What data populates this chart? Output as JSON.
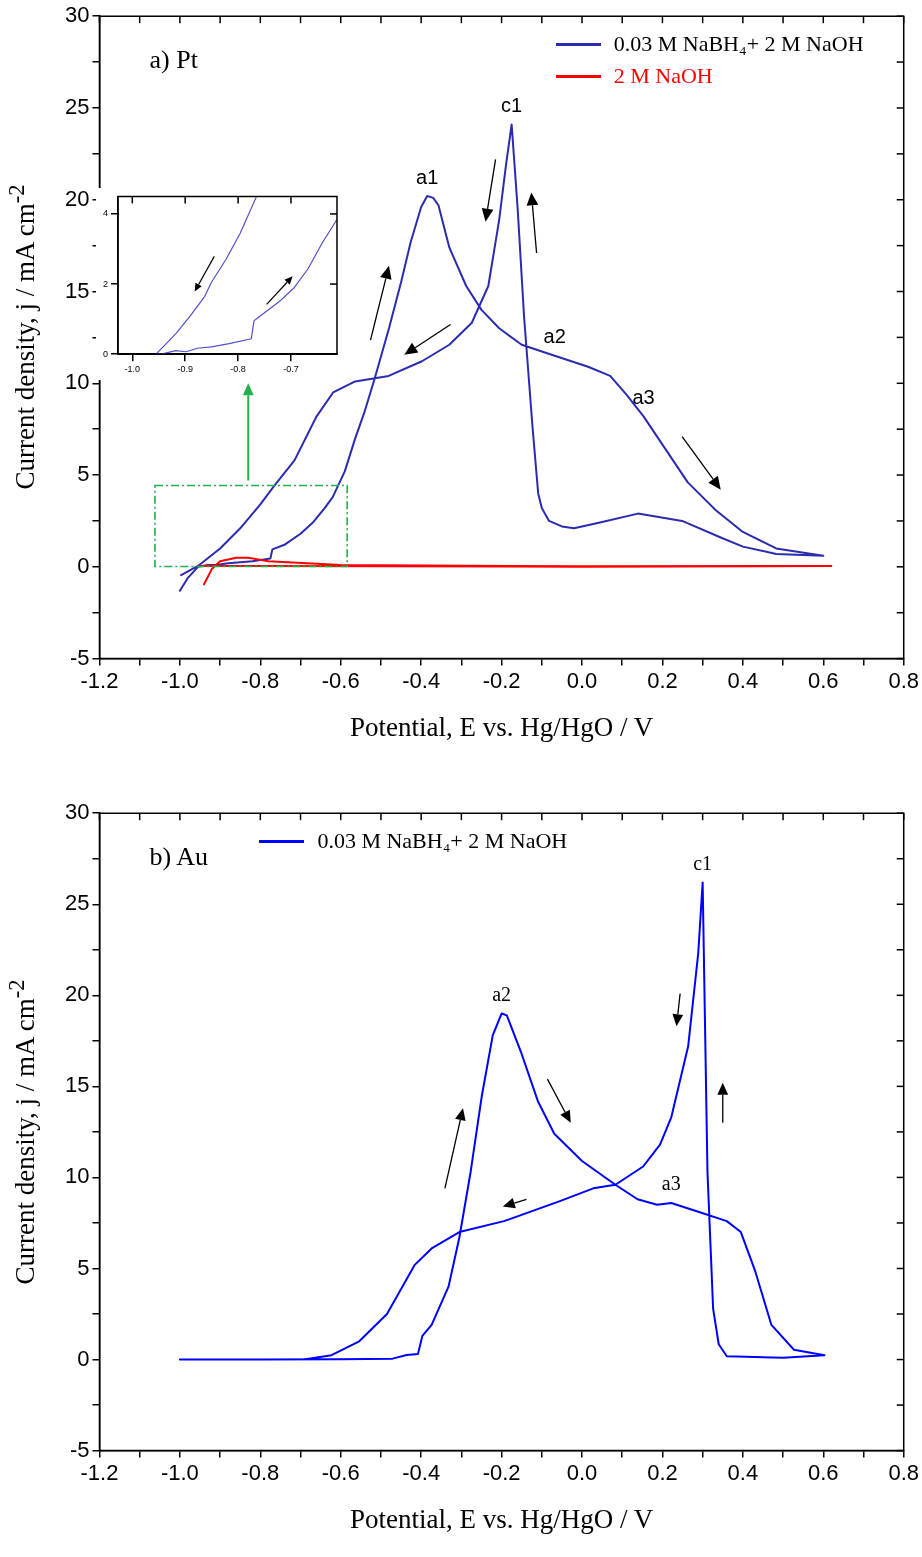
{
  "chart_data": [
    {
      "type": "line",
      "title": "a) Pt",
      "xlabel": "Potential, E vs. Hg/HgO / V",
      "ylabel": "Current density, j / mA cm$^{-2}$",
      "legend": "top right",
      "xlim": [
        -1.2,
        0.8
      ],
      "xticks": [
        -1.2,
        {
          "value": -1.1,
          "label": null
        },
        {
          "value": -1.0,
          "label": "-1.0"
        },
        {
          "value": -0.9,
          "label": null
        },
        -0.8,
        {
          "value": -0.7,
          "label": null
        },
        -0.6,
        {
          "value": -0.5,
          "label": null
        },
        -0.4,
        {
          "value": -0.3,
          "label": null
        },
        -0.2,
        {
          "value": -0.1,
          "label": null
        },
        {
          "value": 0,
          "label": "0.0"
        },
        {
          "value": 0.1,
          "label": null
        },
        0.2,
        {
          "value": 0.3,
          "label": null
        },
        0.4,
        {
          "value": 0.5,
          "label": null
        },
        0.6,
        {
          "value": 0.7,
          "label": null
        },
        0.8
      ],
      "ylim": [
        -5,
        30
      ],
      "yticks": [
        -5,
        {
          "value": -2.5,
          "label": null
        },
        0,
        {
          "value": 2.5,
          "label": null
        },
        5,
        {
          "value": 7.5,
          "label": null
        },
        10,
        {
          "value": 12.5,
          "label": null
        },
        15,
        {
          "value": 17.5,
          "label": null
        },
        20,
        {
          "value": 22.5,
          "label": null
        },
        25,
        {
          "value": 27.5,
          "label": null
        },
        30
      ],
      "annotations": [
        {
          "text": "a1",
          "x": -0.385,
          "y": 20.2
        },
        {
          "text": "c1",
          "x": -0.175,
          "y": 24.1
        },
        {
          "text": "a2",
          "x": -0.068,
          "y": 11.5
        },
        {
          "text": "a3",
          "x": 0.153,
          "y": 8.2
        }
      ],
      "series": [
        {
          "name": "0.03 M NaBH₄+ 2 M NaOH",
          "color": "#2b2bb0",
          "x": [
            -1.0,
            -0.98,
            -0.955,
            -0.93,
            -0.91,
            -0.88,
            -0.82,
            -0.775,
            -0.77,
            -0.74,
            -0.7,
            -0.67,
            -0.64,
            -0.62,
            -0.59,
            -0.564,
            -0.54,
            -0.515,
            -0.48,
            -0.45,
            -0.426,
            -0.4,
            -0.385,
            -0.37,
            -0.357,
            -0.33,
            -0.288,
            -0.25,
            -0.206,
            -0.15,
            -0.068,
            0.015,
            0.07,
            0.11,
            0.153,
            0.208,
            0.263,
            0.332,
            0.4,
            0.483,
            0.6,
            0.483,
            0.4,
            0.345,
            0.249,
            0.139,
            0.042,
            -0.02,
            -0.05,
            -0.082,
            -0.1,
            -0.109,
            -0.123,
            -0.144,
            -0.16,
            -0.175,
            -0.189,
            -0.206,
            -0.233,
            -0.274,
            -0.33,
            -0.398,
            -0.481,
            -0.564,
            -0.619,
            -0.66,
            -0.715,
            -0.766,
            -0.8,
            -0.85,
            -0.9,
            -0.955,
            -0.997
          ],
          "values": [
            -1.3,
            -0.6,
            0,
            0.1,
            0.1,
            0.2,
            0.3,
            0.45,
            0.95,
            1.2,
            1.8,
            2.4,
            3.2,
            3.8,
            5.2,
            7.0,
            8.5,
            10.3,
            13,
            15.5,
            17.7,
            19.6,
            20.2,
            20.1,
            19.7,
            17.4,
            15.3,
            14.0,
            13,
            12.1,
            11.5,
            10.9,
            10.4,
            9.4,
            8.2,
            6.4,
            4.6,
            3.1,
            1.9,
            1.0,
            0.6,
            0.7,
            1.1,
            1.6,
            2.5,
            2.9,
            2.4,
            2.1,
            2.2,
            2.5,
            3.2,
            4.0,
            7.6,
            13.6,
            19.5,
            24.1,
            21.9,
            18.9,
            15.3,
            13.3,
            12.1,
            11.2,
            10.4,
            10.1,
            9.5,
            8.2,
            5.8,
            4.4,
            3.4,
            2.1,
            1.0,
            0.05,
            -0.45
          ]
        },
        {
          "name": "2 M NaOH",
          "color": "#ff0000",
          "x": [
            -0.94,
            -0.92,
            -0.9,
            -0.86,
            -0.83,
            -0.78,
            -0.6,
            0,
            0.62,
            0,
            -0.8,
            -0.95
          ],
          "values": [
            -0.95,
            -0.1,
            0.3,
            0.5,
            0.5,
            0.3,
            0.1,
            0.03,
            0.05,
            0,
            0.05,
            0.05
          ]
        }
      ]
    },
    {
      "type": "line",
      "xlim": [
        -1.027,
        -0.613
      ],
      "xticks": [
        {
          "value": -1.0,
          "label": "-1.0"
        },
        -0.9,
        -0.8,
        -0.7
      ],
      "ylim": [
        0,
        4.5
      ],
      "yticks": [
        0,
        2,
        4
      ],
      "series": [
        {
          "color": "#5050d0",
          "x": [
            -0.766,
            -0.796,
            -0.823,
            -0.85,
            -0.863,
            -0.89,
            -0.918,
            -0.955,
            -0.945,
            -0.918,
            -0.898,
            -0.877,
            -0.85,
            -0.817,
            -0.775,
            -0.77,
            -0.75,
            -0.722,
            -0.695,
            -0.668,
            -0.641,
            -0.614
          ],
          "values": [
            4.47,
            3.45,
            2.7,
            2.06,
            1.65,
            1.1,
            0.58,
            0,
            0,
            0.1,
            0.07,
            0.17,
            0.21,
            0.3,
            0.44,
            0.95,
            1.18,
            1.5,
            1.88,
            2.43,
            3.17,
            3.82
          ]
        }
      ]
    },
    {
      "type": "line",
      "title": "b) Au",
      "xlabel": "Potential, E vs. Hg/HgO / V",
      "ylabel": "Current density, j / mA cm$^{-2}$",
      "legend": "top left",
      "xlim": [
        -1.2,
        0.8
      ],
      "xticks": [
        -1.2,
        {
          "value": -1.1,
          "label": null
        },
        {
          "value": -1.0,
          "label": "-1.0"
        },
        {
          "value": -0.9,
          "label": null
        },
        -0.8,
        {
          "value": -0.7,
          "label": null
        },
        -0.6,
        {
          "value": -0.5,
          "label": null
        },
        -0.4,
        {
          "value": -0.3,
          "label": null
        },
        -0.2,
        {
          "value": -0.1,
          "label": null
        },
        {
          "value": 0,
          "label": "0.0"
        },
        {
          "value": 0.1,
          "label": null
        },
        0.2,
        {
          "value": 0.3,
          "label": null
        },
        0.4,
        {
          "value": 0.5,
          "label": null
        },
        0.6,
        {
          "value": 0.7,
          "label": null
        },
        0.8
      ],
      "ylim": [
        -5,
        30
      ],
      "yticks": [
        -5,
        {
          "value": -2.5,
          "label": null
        },
        0,
        {
          "value": 2.5,
          "label": null
        },
        5,
        {
          "value": 7.5,
          "label": null
        },
        10,
        {
          "value": 12.5,
          "label": null
        },
        15,
        {
          "value": 17.5,
          "label": null
        },
        20,
        {
          "value": 22.5,
          "label": null
        },
        25,
        {
          "value": 27.5,
          "label": null
        },
        30
      ],
      "annotations": [
        {
          "text": "a2",
          "x": -0.2,
          "y": 19.0
        },
        {
          "text": "c1",
          "x": 0.3,
          "y": 26.2
        },
        {
          "text": "a3",
          "x": 0.222,
          "y": 8.6
        }
      ],
      "series": [
        {
          "name": "0.03 M NaBH₄+ 2 M NaOH",
          "color": "#0000ff",
          "x": [
            -1.0,
            -0.8,
            -0.6,
            -0.471,
            -0.436,
            -0.408,
            -0.397,
            -0.374,
            -0.332,
            -0.305,
            -0.277,
            -0.249,
            -0.222,
            -0.2,
            -0.187,
            -0.152,
            -0.11,
            -0.069,
            0.0,
            0.083,
            0.138,
            0.187,
            0.222,
            0.291,
            0.36,
            0.395,
            0.43,
            0.471,
            0.527,
            0.603,
            0.5,
            0.36,
            0.34,
            0.326,
            0.312,
            0.3,
            0.289,
            0.264,
            0.222,
            0.194,
            0.152,
            0.083,
            0.028,
            -0.055,
            -0.194,
            -0.305,
            -0.374,
            -0.416,
            -0.485,
            -0.554,
            -0.623,
            -0.692,
            -0.85,
            -0.99
          ],
          "values": [
            0,
            0,
            0.02,
            0.05,
            0.25,
            0.3,
            1.3,
            1.9,
            4.0,
            6.7,
            10.3,
            14.5,
            17.8,
            19.0,
            18.9,
            16.9,
            14.2,
            12.4,
            10.9,
            9.6,
            8.8,
            8.5,
            8.6,
            8.1,
            7.6,
            7.0,
            4.9,
            1.9,
            0.54,
            0.24,
            0.1,
            0.18,
            0.84,
            2.8,
            10.3,
            26.2,
            22.3,
            17.2,
            13.3,
            11.8,
            10.6,
            9.6,
            9.4,
            8.7,
            7.6,
            7.0,
            6.1,
            5.2,
            2.5,
            1.0,
            0.24,
            0,
            0,
            0
          ]
        }
      ]
    }
  ]
}
